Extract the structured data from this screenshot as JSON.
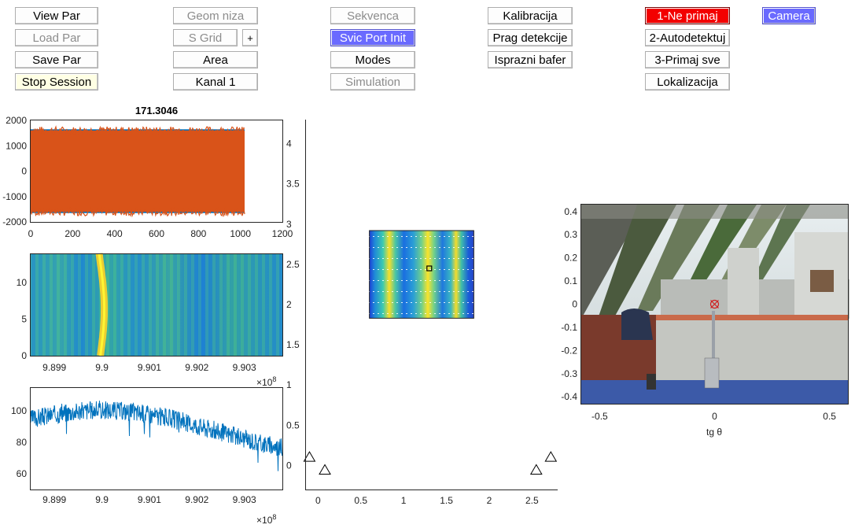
{
  "buttons": {
    "view_par": "View Par",
    "load_par": "Load Par",
    "save_par": "Save Par",
    "stop_session": "Stop Session",
    "geom_niza": "Geom niza",
    "s_grid": "S Grid",
    "plus": "+",
    "area": "Area",
    "kanal1": "Kanal 1",
    "sekvenca": "Sekvenca",
    "svic_port_init": "Svic Port Init",
    "modes": "Modes",
    "simulation": "Simulation",
    "kalibracija": "Kalibracija",
    "prag_detekcije": "Prag detekcije",
    "isprazni_bafer": "Isprazni bafer",
    "ne_primaj": "1-Ne primaj",
    "autodetektuj": "2-Autodetektuj",
    "primaj_sve": "3-Primaj sve",
    "lokalizacija": "Lokalizacija",
    "camera": "Camera"
  },
  "colors": {
    "signal_orange": "#d95319",
    "signal_blue": "#0072bd",
    "active_blue": "#6a6aff",
    "alarm_red": "#f30000",
    "stop_yellow": "#ffffe4"
  },
  "chart_data": [
    {
      "type": "area",
      "title": "171.3046",
      "xlim": [
        0,
        1200
      ],
      "ylim": [
        -2000,
        2000
      ],
      "xticks": [
        "0",
        "200",
        "400",
        "600",
        "800",
        "1000",
        "1200"
      ],
      "yticks": [
        "2000",
        "1000",
        "0",
        "-1000",
        "-2000"
      ],
      "series": [
        {
          "values": [
            [
              0,
              -1650,
              1650
            ],
            [
              1020,
              -1650,
              1650
            ]
          ]
        },
        {
          "values": [
            [
              0,
              -1600,
              1600
            ],
            [
              1020,
              -1600,
              1600
            ]
          ]
        }
      ]
    },
    {
      "type": "heatmap",
      "xlim": [
        989850000,
        990380000
      ],
      "ylim": [
        0,
        14
      ],
      "xticks": [
        "9.899",
        "9.9",
        "9.901",
        "9.902",
        "9.903"
      ],
      "yticks": [
        "10",
        "5",
        "0"
      ],
      "x_exponent": "10",
      "x_exponent_power": "8"
    },
    {
      "type": "line",
      "xlim": [
        989850000,
        990380000
      ],
      "ylim": [
        50,
        115
      ],
      "xticks": [
        "9.899",
        "9.9",
        "9.901",
        "9.902",
        "9.903"
      ],
      "yticks": [
        "100",
        "80",
        "60"
      ],
      "x_exponent": "10",
      "x_exponent_power": "8",
      "series": [
        {
          "peak_x": 990000000,
          "peak_y": 112,
          "baseline_y": 66
        }
      ]
    },
    {
      "type": "scatter",
      "xlim": [
        -0.15,
        2.8
      ],
      "ylim": [
        -0.3,
        4.3
      ],
      "xticks": [
        "0",
        "0.5",
        "1",
        "1.5",
        "2",
        "2.5"
      ],
      "yticks": [
        "4",
        "3.5",
        "3",
        "2.5",
        "2",
        "1.5",
        "1",
        "0.5",
        "0"
      ],
      "markers": [
        [
          -0.1,
          0.1
        ],
        [
          0.08,
          -0.06
        ],
        [
          2.55,
          -0.06
        ],
        [
          2.72,
          0.1
        ]
      ],
      "source_x": 1.3,
      "source_y": 2.45
    },
    {
      "type": "image",
      "xlim": [
        -0.58,
        0.58
      ],
      "ylim": [
        -0.43,
        0.43
      ],
      "xticks": [
        "-0.5",
        "0",
        "0.5"
      ],
      "yticks": [
        "0.4",
        "0.3",
        "0.2",
        "0.1",
        "0",
        "-0.1",
        "-0.2",
        "-0.3",
        "-0.4"
      ],
      "xlabel": "tg θ",
      "target_x": 0,
      "target_y": 0
    }
  ]
}
